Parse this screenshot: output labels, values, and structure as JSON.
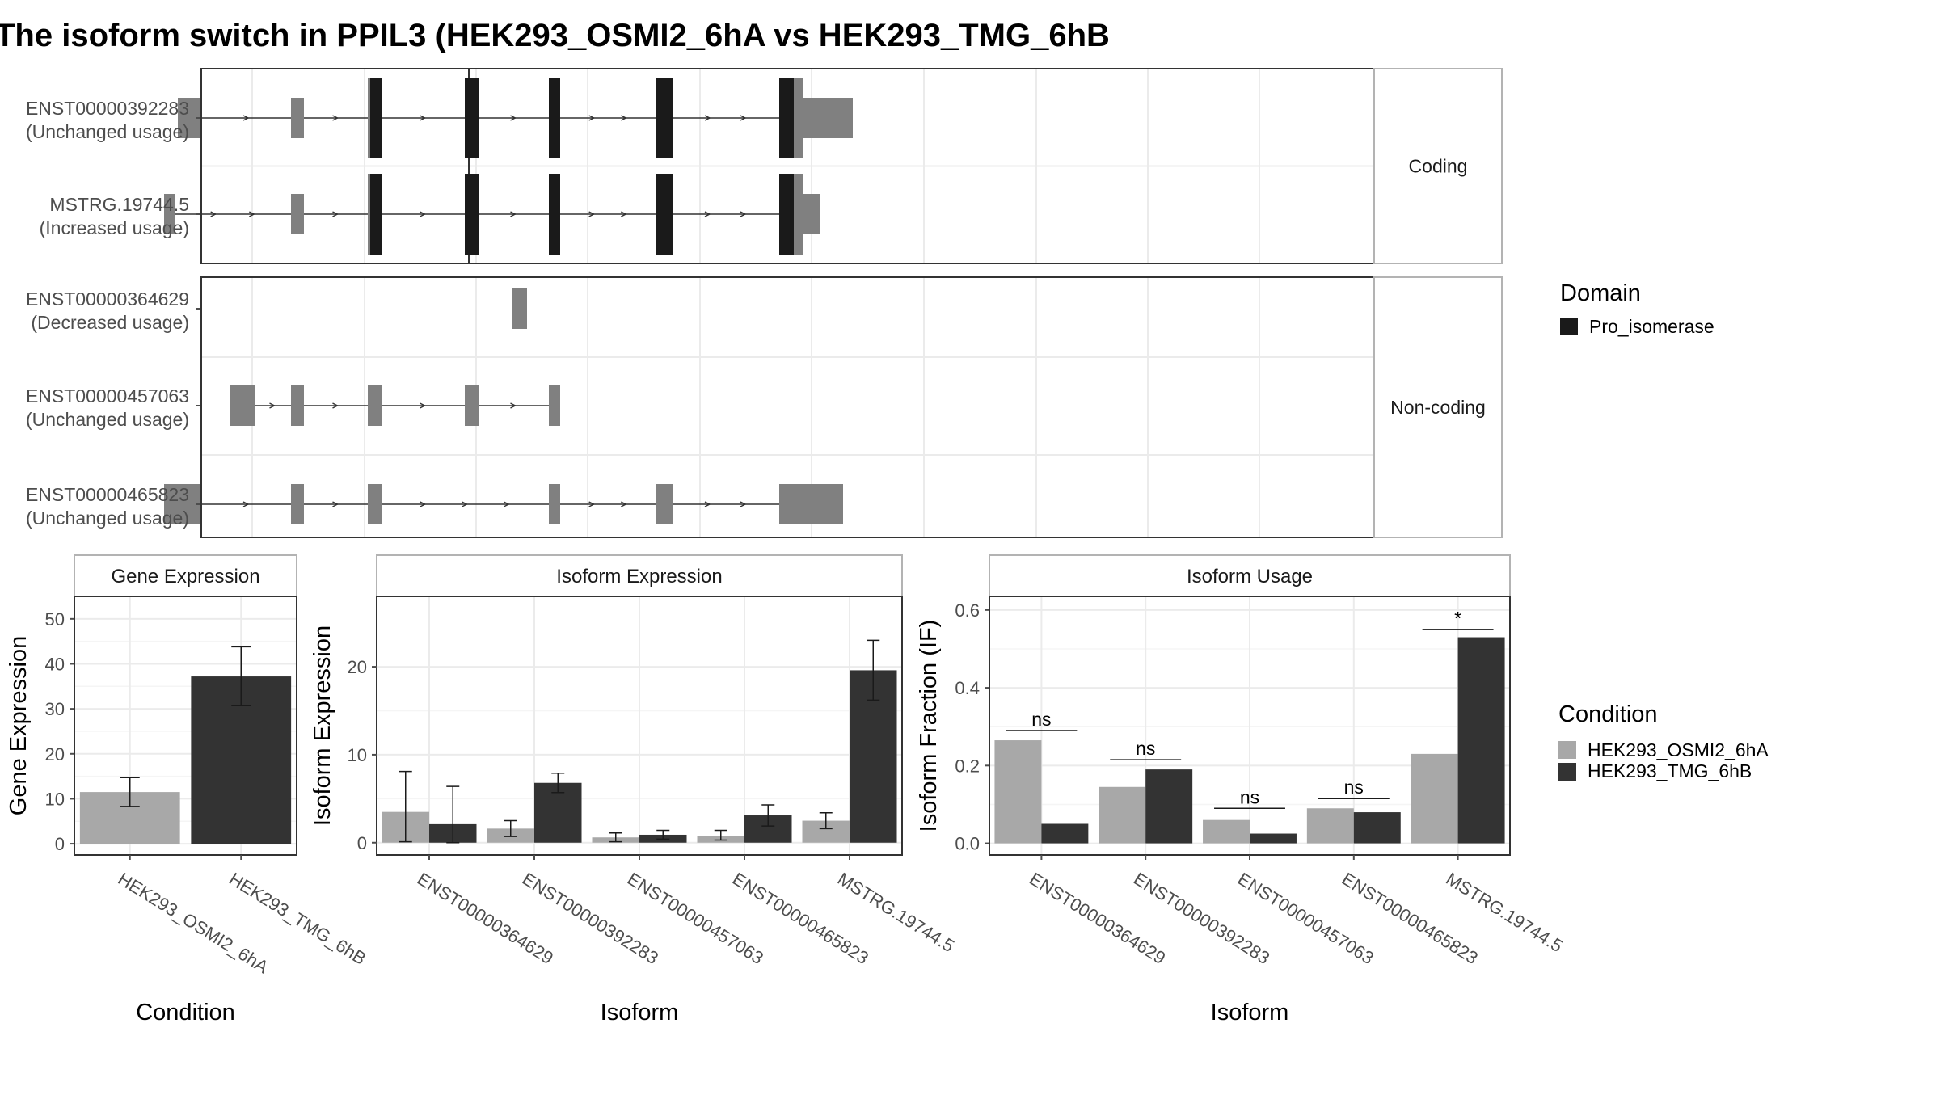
{
  "colors": {
    "domain": "#1a1a1a",
    "exon": "#808080",
    "cond1": "#a8a8a8",
    "cond2": "#333333",
    "grid": "#ebebeb",
    "panel_border": "#333333",
    "strip_border": "#b3b3b3",
    "text_axis": "#4d4d4d"
  },
  "chart_data": [
    {
      "type": "gene-structure",
      "title": "The isoform switch in PPIL3 (HEK293_OSMI2_6hA vs HEK293_TMG_6hB",
      "legend": {
        "title": "Domain",
        "items": [
          "Pro_isomerase"
        ]
      },
      "facets": [
        {
          "label": "Coding",
          "isoforms": [
            {
              "name": "ENST00000392283",
              "usage": "(Unchanged usage)",
              "exons": [
                [
                  220,
                  250
                ],
                [
                  360,
                  376
                ],
                [
                  455,
                  472
                ],
                [
                  575,
                  592
                ],
                [
                  679,
                  693
                ],
                [
                  812,
                  832
                ],
                [
                  964,
                  1055
                ]
              ],
              "domains": [
                [
                  458,
                  472
                ],
                [
                  575,
                  592
                ],
                [
                  679,
                  693
                ],
                [
                  812,
                  832
                ],
                [
                  964,
                  982
                ]
              ]
            },
            {
              "name": "MSTRG.19744.5",
              "usage": "(Increased usage)",
              "exons": [
                [
                  203,
                  217
                ],
                [
                  360,
                  376
                ],
                [
                  455,
                  472
                ],
                [
                  575,
                  592
                ],
                [
                  679,
                  693
                ],
                [
                  812,
                  832
                ],
                [
                  964,
                  1014
                ]
              ],
              "domains": [
                [
                  458,
                  472
                ],
                [
                  575,
                  592
                ],
                [
                  679,
                  693
                ],
                [
                  812,
                  832
                ],
                [
                  964,
                  982
                ]
              ]
            }
          ]
        },
        {
          "label": "Non-coding",
          "isoforms": [
            {
              "name": "ENST00000364629",
              "usage": "(Decreased usage)",
              "exons": [
                [
                  634,
                  652
                ]
              ],
              "domains": []
            },
            {
              "name": "ENST00000457063",
              "usage": "(Unchanged usage)",
              "exons": [
                [
                  285,
                  315
                ],
                [
                  360,
                  376
                ],
                [
                  455,
                  472
                ],
                [
                  575,
                  592
                ],
                [
                  679,
                  693
                ]
              ],
              "domains": []
            },
            {
              "name": "ENST00000465823",
              "usage": "(Unchanged usage)",
              "exons": [
                [
                  203,
                  250
                ],
                [
                  360,
                  376
                ],
                [
                  455,
                  472
                ],
                [
                  679,
                  693
                ],
                [
                  812,
                  832
                ],
                [
                  964,
                  1043
                ]
              ],
              "domains": []
            }
          ]
        }
      ]
    },
    {
      "type": "bar",
      "title": "Gene Expression",
      "xlabel": "Condition",
      "ylabel": "Gene Expression",
      "ylim": [
        -2.5,
        55
      ],
      "yticks": [
        0,
        10,
        20,
        30,
        40,
        50
      ],
      "categories": [
        "HEK293_OSMI2_6hA",
        "HEK293_TMG_6hB"
      ],
      "values": [
        11.5,
        37.2
      ],
      "errors": [
        [
          8.3,
          14.7
        ],
        [
          30.7,
          43.8
        ]
      ]
    },
    {
      "type": "bar",
      "title": "Isoform Expression",
      "xlabel": "Isoform",
      "ylabel": "Isoform Expression",
      "ylim": [
        -1.4,
        28
      ],
      "yticks": [
        0,
        10,
        20
      ],
      "categories": [
        "ENST00000364629",
        "ENST00000392283",
        "ENST00000457063",
        "ENST00000465823",
        "MSTRG.19744.5"
      ],
      "series": [
        {
          "name": "HEK293_OSMI2_6hA",
          "values": [
            3.5,
            1.6,
            0.6,
            0.8,
            2.5
          ],
          "errors": [
            [
              0.1,
              8.1
            ],
            [
              0.7,
              2.5
            ],
            [
              0.1,
              1.1
            ],
            [
              0.3,
              1.4
            ],
            [
              1.6,
              3.4
            ]
          ]
        },
        {
          "name": "HEK293_TMG_6hB",
          "values": [
            2.1,
            6.8,
            0.9,
            3.1,
            19.6
          ],
          "errors": [
            [
              0.0,
              6.4
            ],
            [
              5.7,
              7.9
            ],
            [
              0.4,
              1.4
            ],
            [
              1.9,
              4.3
            ],
            [
              16.2,
              23.0
            ]
          ]
        }
      ]
    },
    {
      "type": "bar",
      "title": "Isoform Usage",
      "xlabel": "Isoform",
      "ylabel": "Isoform Fraction (IF)",
      "ylim": [
        -0.03,
        0.635
      ],
      "yticks": [
        0.0,
        0.2,
        0.4,
        0.6
      ],
      "ytick_labels": [
        "0.0",
        "0.2",
        "0.4",
        "0.6"
      ],
      "categories": [
        "ENST00000364629",
        "ENST00000392283",
        "ENST00000457063",
        "ENST00000465823",
        "MSTRG.19744.5"
      ],
      "series": [
        {
          "name": "HEK293_OSMI2_6hA",
          "values": [
            0.265,
            0.145,
            0.06,
            0.09,
            0.23
          ]
        },
        {
          "name": "HEK293_TMG_6hB",
          "values": [
            0.05,
            0.19,
            0.025,
            0.08,
            0.53
          ]
        }
      ],
      "significance": [
        "ns",
        "ns",
        "ns",
        "ns",
        "*"
      ],
      "significance_y": [
        0.29,
        0.215,
        0.09,
        0.115,
        0.55
      ]
    }
  ],
  "condition_legend": {
    "title": "Condition",
    "items": [
      "HEK293_OSMI2_6hA",
      "HEK293_TMG_6hB"
    ]
  }
}
